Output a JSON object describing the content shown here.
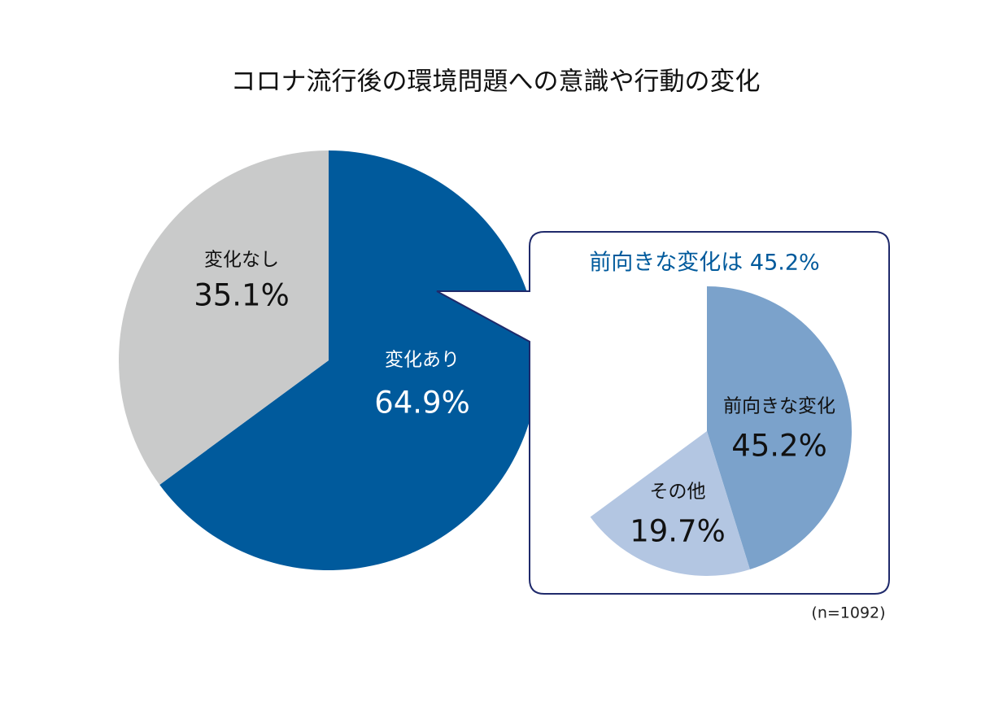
{
  "chart_data": [
    {
      "type": "pie",
      "title": "コロナ流行後の環境問題への意識や行動の変化",
      "categories": [
        "変化あり",
        "変化なし"
      ],
      "values": [
        64.9,
        35.1
      ],
      "value_labels": [
        "64.9%",
        "35.1%"
      ],
      "colors": [
        "#005a9c",
        "#c9caca"
      ],
      "note": "(n=1092)"
    },
    {
      "type": "pie",
      "title": "前向きな変化は 45.2%",
      "categories": [
        "前向きな変化",
        "その他"
      ],
      "values": [
        45.2,
        19.7
      ],
      "value_labels": [
        "45.2%",
        "19.7%"
      ],
      "colors": [
        "#7ba2cb",
        "#b3c6e2"
      ]
    }
  ]
}
